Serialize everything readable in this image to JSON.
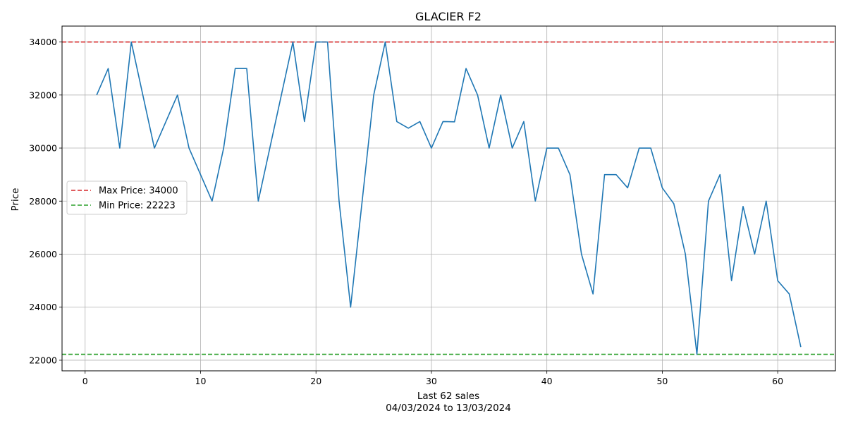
{
  "chart_data": {
    "type": "line",
    "title": "GLACIER F2",
    "xlabel": "Last 62 sales",
    "xlabel_sub": "04/03/2024 to 13/03/2024",
    "ylabel": "Price",
    "xlim": [
      -2,
      65
    ],
    "ylim": [
      21600,
      34600
    ],
    "x_ticks": [
      0,
      10,
      20,
      30,
      40,
      50,
      60
    ],
    "y_ticks": [
      22000,
      24000,
      26000,
      28000,
      30000,
      32000,
      34000
    ],
    "grid": true,
    "legend_position": "center-left",
    "series": [
      {
        "color": "#1f77b4",
        "x": [
          1,
          2,
          3,
          4,
          5,
          6,
          7,
          8,
          9,
          10,
          11,
          12,
          13,
          14,
          15,
          16,
          17,
          18,
          19,
          20,
          21,
          22,
          23,
          24,
          25,
          26,
          27,
          28,
          29,
          30,
          31,
          32,
          33,
          34,
          35,
          36,
          37,
          38,
          39,
          40,
          41,
          42,
          43,
          44,
          45,
          46,
          47,
          48,
          49,
          50,
          51,
          52,
          53,
          54,
          55,
          56,
          57,
          58,
          59,
          60,
          61,
          62
        ],
        "values": [
          32000,
          33000,
          30000,
          34000,
          32000,
          30000,
          31000,
          32000,
          30000,
          29000,
          28000,
          30000,
          33000,
          33000,
          28000,
          30000,
          32000,
          34000,
          31000,
          34000,
          34000,
          28000,
          24000,
          28000,
          32000,
          34000,
          31000,
          30750,
          31000,
          30000,
          31000,
          30990,
          33000,
          32000,
          30000,
          32000,
          30000,
          31000,
          28000,
          30000,
          30000,
          29000,
          26000,
          24500,
          29000,
          29000,
          28500,
          30000,
          30000,
          28500,
          27900,
          26000,
          22223,
          28000,
          29000,
          25000,
          27800,
          26000,
          28000,
          25000,
          24500,
          22500
        ]
      }
    ],
    "reference_lines": [
      {
        "name": "Max Price: 34000",
        "value": 34000,
        "color": "#d62728",
        "style": "dashed"
      },
      {
        "name": "Min Price: 22223",
        "value": 22223,
        "color": "#2ca02c",
        "style": "dashed"
      }
    ]
  }
}
